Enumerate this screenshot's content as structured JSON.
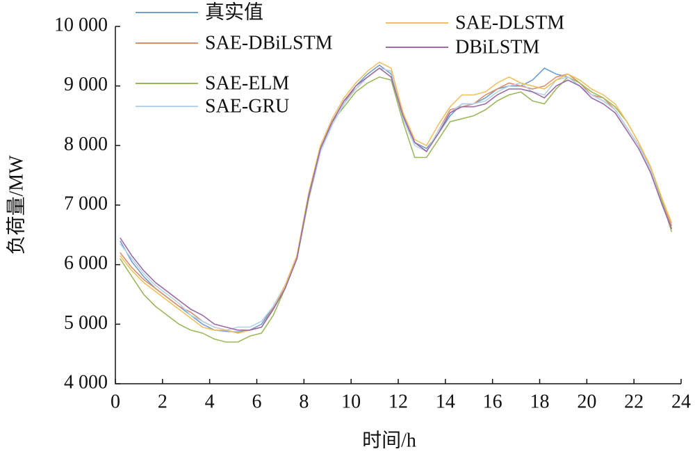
{
  "chart_data": {
    "type": "line",
    "x_label": "时间/h",
    "y_label": "负荷量/MW",
    "x": [
      0.2,
      0.7,
      1.2,
      1.7,
      2.2,
      2.7,
      3.2,
      3.7,
      4.2,
      4.7,
      5.2,
      5.7,
      6.2,
      6.7,
      7.2,
      7.7,
      8.2,
      8.7,
      9.2,
      9.7,
      10.2,
      10.7,
      11.2,
      11.7,
      12.2,
      12.7,
      13.2,
      13.7,
      14.2,
      14.7,
      15.2,
      15.7,
      16.2,
      16.7,
      17.2,
      17.7,
      18.2,
      18.7,
      19.2,
      19.7,
      20.2,
      20.7,
      21.2,
      21.7,
      22.2,
      22.7,
      23.2,
      23.6
    ],
    "series": [
      {
        "name": "真实值",
        "color": "#6e9fd0",
        "values": [
          6400,
          6050,
          5800,
          5600,
          5450,
          5300,
          5150,
          5000,
          4900,
          4880,
          4870,
          4900,
          5000,
          5300,
          5650,
          6100,
          7100,
          7900,
          8350,
          8700,
          9000,
          9200,
          9350,
          9200,
          8500,
          8050,
          7950,
          8200,
          8500,
          8700,
          8700,
          8800,
          8950,
          9000,
          9000,
          9100,
          9300,
          9200,
          9150,
          9000,
          8850,
          8750,
          8600,
          8300,
          8000,
          7600,
          7000,
          6600
        ]
      },
      {
        "name": "SAE-DBiLSTM",
        "color": "#d9906a",
        "values": [
          6200,
          5950,
          5750,
          5600,
          5450,
          5300,
          5200,
          5050,
          4950,
          4900,
          4850,
          4900,
          4950,
          5280,
          5650,
          6150,
          7150,
          7950,
          8400,
          8750,
          8950,
          9150,
          9300,
          9250,
          8550,
          8050,
          7900,
          8250,
          8600,
          8650,
          8700,
          8850,
          8950,
          9050,
          9000,
          8950,
          9000,
          9150,
          9200,
          9050,
          8850,
          8800,
          8600,
          8300,
          8000,
          7650,
          7050,
          6650
        ]
      },
      {
        "name": "SAE-ELM",
        "color": "#9cb85c",
        "values": [
          6100,
          5800,
          5500,
          5300,
          5150,
          5000,
          4900,
          4850,
          4750,
          4700,
          4700,
          4800,
          4850,
          5150,
          5600,
          6100,
          7100,
          7950,
          8400,
          8650,
          8900,
          9050,
          9150,
          9100,
          8400,
          7800,
          7800,
          8100,
          8400,
          8450,
          8500,
          8600,
          8750,
          8850,
          8900,
          8750,
          8700,
          8950,
          9150,
          9050,
          8900,
          8800,
          8650,
          8400,
          8050,
          7650,
          7050,
          6550
        ]
      },
      {
        "name": "SAE-GRU",
        "color": "#b5d3e8",
        "values": [
          6350,
          6100,
          5850,
          5650,
          5500,
          5350,
          5150,
          5050,
          4950,
          4900,
          4950,
          4950,
          5050,
          5300,
          5650,
          6100,
          7150,
          7900,
          8350,
          8700,
          8950,
          9150,
          9300,
          9250,
          8450,
          8000,
          7900,
          8250,
          8550,
          8700,
          8700,
          8750,
          8900,
          9000,
          9050,
          8900,
          8850,
          9100,
          9150,
          9000,
          8850,
          8750,
          8600,
          8300,
          8000,
          7600,
          7000,
          6600
        ]
      },
      {
        "name": "SAE-DLSTM",
        "color": "#f0c060",
        "values": [
          6150,
          5900,
          5700,
          5550,
          5400,
          5250,
          5100,
          4950,
          4900,
          4900,
          4850,
          4900,
          4950,
          5250,
          5650,
          6150,
          7200,
          8000,
          8450,
          8800,
          9050,
          9250,
          9400,
          9300,
          8550,
          8100,
          8000,
          8350,
          8650,
          8850,
          8850,
          8900,
          9050,
          9150,
          9050,
          9000,
          8950,
          9100,
          9200,
          9100,
          8950,
          8850,
          8700,
          8400,
          8050,
          7650,
          7100,
          6700
        ]
      },
      {
        "name": "DBiLSTM",
        "color": "#9b6aa8",
        "values": [
          6450,
          6150,
          5900,
          5700,
          5550,
          5400,
          5250,
          5150,
          5000,
          4950,
          4900,
          4900,
          4950,
          5250,
          5600,
          6100,
          7150,
          7950,
          8400,
          8750,
          9000,
          9150,
          9300,
          9150,
          8500,
          8050,
          7900,
          8200,
          8550,
          8650,
          8650,
          8700,
          8850,
          8950,
          8950,
          8900,
          8800,
          9000,
          9100,
          9000,
          8800,
          8700,
          8550,
          8250,
          7950,
          7550,
          7000,
          6600
        ]
      }
    ],
    "xlim": [
      0,
      24
    ],
    "xticks": [
      0,
      2,
      4,
      6,
      8,
      10,
      12,
      14,
      16,
      18,
      20,
      22,
      24
    ],
    "ylim": [
      4000,
      10000
    ],
    "yticks": [
      {
        "value": 4000,
        "label": "4 000"
      },
      {
        "value": 5000,
        "label": "5 000"
      },
      {
        "value": 6000,
        "label": "6 000"
      },
      {
        "value": 7000,
        "label": "7 000"
      },
      {
        "value": 8000,
        "label": "8 000"
      },
      {
        "value": 9000,
        "label": "9 000"
      },
      {
        "value": 10000,
        "label": "10 000"
      }
    ]
  }
}
